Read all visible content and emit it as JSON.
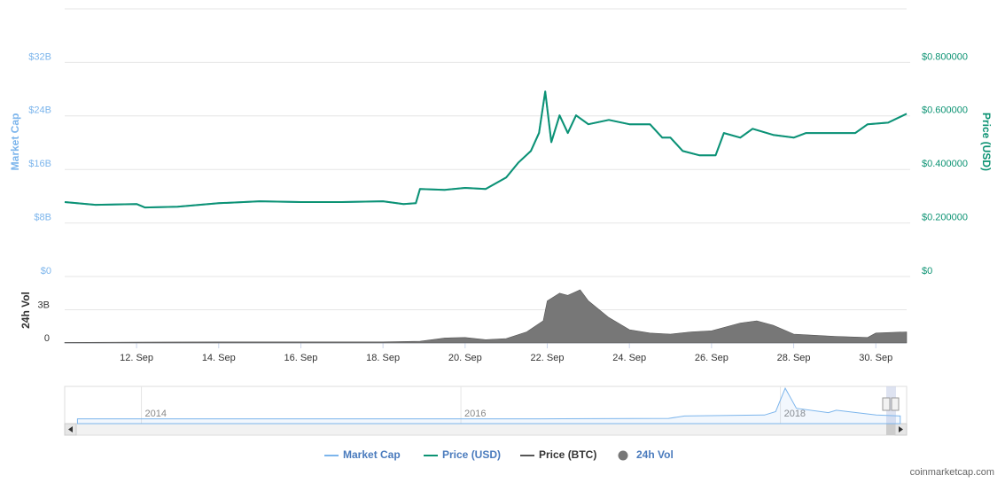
{
  "chart_data": {
    "type": "line",
    "ylabel": "Market Cap",
    "y2label": "Price (USD)",
    "vol_label": "24h Vol",
    "credit": "coinmarketcap.com",
    "xlim": [
      10.25,
      30.75
    ],
    "xticks": [
      {
        "value": 12,
        "label": "12. Sep"
      },
      {
        "value": 14,
        "label": "14. Sep"
      },
      {
        "value": 16,
        "label": "16. Sep"
      },
      {
        "value": 18,
        "label": "18. Sep"
      },
      {
        "value": 20,
        "label": "20. Sep"
      },
      {
        "value": 22,
        "label": "22. Sep"
      },
      {
        "value": 24,
        "label": "24. Sep"
      },
      {
        "value": 26,
        "label": "26. Sep"
      },
      {
        "value": 28,
        "label": "28. Sep"
      },
      {
        "value": 30,
        "label": "30. Sep"
      }
    ],
    "ylim": [
      0,
      40
    ],
    "yticks": [
      {
        "value": 0,
        "label": "$0"
      },
      {
        "value": 8,
        "label": "$8B"
      },
      {
        "value": 16,
        "label": "$16B"
      },
      {
        "value": 24,
        "label": "$24B"
      },
      {
        "value": 32,
        "label": "$32B"
      }
    ],
    "y2lim": [
      0,
      1
    ],
    "y2ticks": [
      {
        "value": 0,
        "label": "$0"
      },
      {
        "value": 0.2,
        "label": "$0.200000"
      },
      {
        "value": 0.4,
        "label": "$0.400000"
      },
      {
        "value": 0.6,
        "label": "$0.600000"
      },
      {
        "value": 0.8,
        "label": "$0.800000"
      }
    ],
    "vol_ylim": [
      0,
      6
    ],
    "vol_yticks": [
      0,
      {
        "value": 3,
        "label": "3B"
      }
    ],
    "grid": true,
    "series": [
      {
        "name": "Market Cap",
        "color": "#7cb5ec",
        "x": [
          10.25,
          11,
          12,
          12.2,
          13,
          14,
          15,
          16,
          17,
          18,
          18.5,
          18.8,
          18.9,
          19.5,
          20,
          20.5,
          21,
          21.3,
          21.6,
          21.8,
          21.95,
          22.1,
          22.3,
          22.5,
          22.7,
          23,
          23.5,
          24,
          24.5,
          24.8,
          25,
          25.3,
          25.7,
          26.1,
          26.3,
          26.7,
          27,
          27.5,
          28,
          28.3,
          29,
          29.5,
          29.8,
          30.3,
          30.75
        ],
        "values": [
          11.12,
          10.72,
          10.84,
          10.32,
          10.44,
          10.96,
          11.24,
          11.12,
          11.12,
          11.24,
          10.84,
          10.96,
          13.08,
          12.96,
          13.24,
          13.08,
          14.8,
          17.04,
          18.76,
          21.44,
          27.64,
          20.08,
          24.08,
          21.44,
          24.08,
          22.76,
          23.4,
          22.76,
          22.76,
          20.76,
          20.76,
          18.76,
          18.12,
          18.12,
          21.44,
          20.76,
          22.08,
          21.16,
          20.76,
          21.44,
          21.44,
          21.44,
          22.76,
          23.0,
          24.32
        ]
      },
      {
        "name": "Price (USD)",
        "color": "#0c9373",
        "axis": "y2",
        "x": [
          10.25,
          11,
          12,
          12.2,
          13,
          14,
          15,
          16,
          17,
          18,
          18.5,
          18.8,
          18.9,
          19.5,
          20,
          20.5,
          21,
          21.3,
          21.6,
          21.8,
          21.95,
          22.1,
          22.3,
          22.5,
          22.7,
          23,
          23.5,
          24,
          24.5,
          24.8,
          25,
          25.3,
          25.7,
          26.1,
          26.3,
          26.7,
          27,
          27.5,
          28,
          28.3,
          29,
          29.5,
          29.8,
          30.3,
          30.75
        ],
        "values": [
          0.278,
          0.268,
          0.271,
          0.258,
          0.261,
          0.274,
          0.281,
          0.278,
          0.278,
          0.281,
          0.271,
          0.274,
          0.327,
          0.324,
          0.331,
          0.327,
          0.37,
          0.426,
          0.469,
          0.536,
          0.691,
          0.502,
          0.602,
          0.536,
          0.602,
          0.569,
          0.585,
          0.569,
          0.569,
          0.519,
          0.519,
          0.469,
          0.453,
          0.453,
          0.536,
          0.519,
          0.552,
          0.529,
          0.519,
          0.536,
          0.536,
          0.536,
          0.569,
          0.575,
          0.608
        ]
      },
      {
        "name": "Price (BTC)",
        "color": "#555555"
      },
      {
        "name": "24h Vol",
        "color": "#777777",
        "axis": "vol",
        "x": [
          10.25,
          12,
          14,
          16,
          18,
          18.9,
          19.5,
          20,
          20.5,
          21,
          21.5,
          21.9,
          22,
          22.3,
          22.5,
          22.8,
          23,
          23.5,
          24,
          24.5,
          25,
          25.5,
          26,
          26.3,
          26.7,
          27.1,
          27.5,
          28,
          28.5,
          29,
          29.8,
          30,
          30.75
        ],
        "values": [
          0.05,
          0.08,
          0.1,
          0.1,
          0.1,
          0.15,
          0.45,
          0.5,
          0.3,
          0.4,
          1.0,
          2.0,
          3.8,
          4.5,
          4.3,
          4.8,
          3.8,
          2.3,
          1.2,
          0.9,
          0.8,
          1.0,
          1.1,
          1.4,
          1.8,
          2.0,
          1.6,
          0.8,
          0.7,
          0.6,
          0.5,
          0.9,
          1.0
        ]
      }
    ],
    "navigator": {
      "color": "#7cb5ec",
      "xlim": [
        2013.52,
        2018.79
      ],
      "xticks": [
        2014,
        2016,
        2018
      ],
      "x": [
        2013.6,
        2014.5,
        2015.5,
        2016.5,
        2017.3,
        2017.4,
        2017.9,
        2017.97,
        2018.03,
        2018.1,
        2018.3,
        2018.35,
        2018.6,
        2018.75
      ],
      "values": [
        1,
        1,
        1,
        1,
        1.1,
        1.6,
        1.8,
        2.5,
        7.4,
        3.2,
        2.3,
        2.8,
        1.8,
        1.6
      ]
    }
  }
}
